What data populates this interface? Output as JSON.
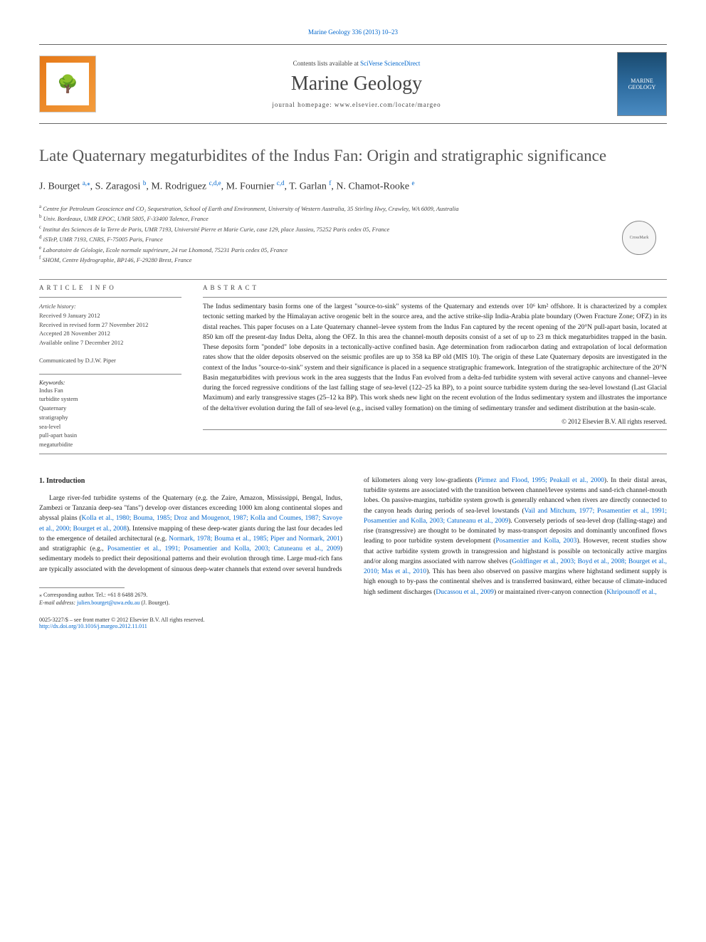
{
  "top_link": "Marine Geology 336 (2013) 10–23",
  "header": {
    "contents_prefix": "Contents lists available at ",
    "contents_link": "SciVerse ScienceDirect",
    "journal_name": "Marine Geology",
    "homepage_prefix": "journal homepage: ",
    "homepage_url": "www.elsevier.com/locate/margeo",
    "elsevier_label": "ELSEVIER",
    "cover_label": "MARINE GEOLOGY"
  },
  "title": "Late Quaternary megaturbidites of the Indus Fan: Origin and stratigraphic significance",
  "authors_html": {
    "a1_name": "J. Bourget ",
    "a1_sup": "a,",
    "a1_star": "⁎",
    "a2_name": ", S. Zaragosi ",
    "a2_sup": "b",
    "a3_name": ", M. Rodriguez ",
    "a3_sup": "c,d,e",
    "a4_name": ", M. Fournier ",
    "a4_sup": "c,d",
    "a5_name": ", T. Garlan ",
    "a5_sup": "f",
    "a6_name": ", N. Chamot-Rooke ",
    "a6_sup": "e"
  },
  "affiliations": {
    "a": "Centre for Petroleum Geoscience and CO₂ Sequestration, School of Earth and Environment, University of Western Australia, 35 Stirling Hwy, Crawley, WA 6009, Australia",
    "b": "Univ. Bordeaux, UMR EPOC, UMR 5805, F-33400 Talence, France",
    "c": "Institut des Sciences de la Terre de Paris, UMR 7193, Université Pierre et Marie Curie, case 129, place Jussieu, 75252 Paris cedex 05, France",
    "d": "iSTeP, UMR 7193, CNRS, F-75005 Paris, France",
    "e": "Laboratoire de Géologie, Ecole normale supérieure, 24 rue Lhomond, 75231 Paris cedex 05, France",
    "f": "SHOM, Centre Hydrographie, BP146, F-29280 Brest, France"
  },
  "article_info": {
    "heading": "article info",
    "history_label": "Article history:",
    "history": {
      "received": "Received 9 January 2012",
      "revised": "Received in revised form 27 November 2012",
      "accepted": "Accepted 28 November 2012",
      "online": "Available online 7 December 2012"
    },
    "communicated": "Communicated by D.J.W. Piper",
    "keywords_label": "Keywords:",
    "keywords": [
      "Indus Fan",
      "turbidite system",
      "Quaternary",
      "stratigraphy",
      "sea-level",
      "pull-apart basin",
      "megaturbidite"
    ]
  },
  "abstract": {
    "heading": "abstract",
    "text": "The Indus sedimentary basin forms one of the largest \"source-to-sink\" systems of the Quaternary and extends over 10⁶ km² offshore. It is characterized by a complex tectonic setting marked by the Himalayan active orogenic belt in the source area, and the active strike-slip India-Arabia plate boundary (Owen Fracture Zone; OFZ) in its distal reaches. This paper focuses on a Late Quaternary channel–levee system from the Indus Fan captured by the recent opening of the 20°N pull-apart basin, located at 850 km off the present-day Indus Delta, along the OFZ. In this area the channel-mouth deposits consist of a set of up to 23 m thick megaturbidites trapped in the basin. These deposits form \"ponded\" lobe deposits in a tectonically-active confined basin. Age determination from radiocarbon dating and extrapolation of local deformation rates show that the older deposits observed on the seismic profiles are up to 358 ka BP old (MIS 10). The origin of these Late Quaternary deposits are investigated in the context of the Indus \"source-to-sink\" system and their significance is placed in a sequence stratigraphic framework. Integration of the stratigraphic architecture of the 20°N Basin megaturbidites with previous work in the area suggests that the Indus Fan evolved from a delta-fed turbidite system with several active canyons and channel–levee during the forced regressive conditions of the last falling stage of sea-level (122–25 ka BP), to a point source turbidite system during the sea-level lowstand (Last Glacial Maximum) and early transgressive stages (25–12 ka BP). This work sheds new light on the recent evolution of the Indus sedimentary system and illustrates the importance of the delta/river evolution during the fall of sea-level (e.g., incised valley formation) on the timing of sedimentary transfer and sediment distribution at the basin-scale.",
    "copyright": "© 2012 Elsevier B.V. All rights reserved."
  },
  "body": {
    "section1_heading": "1. Introduction",
    "col1_p1a": "Large river-fed turbidite systems of the Quaternary (e.g. the Zaire, Amazon, Mississippi, Bengal, Indus, Zambezi or Tanzania deep-sea \"fans\") develop over distances exceeding 1000 km along continental slopes and abyssal plains (",
    "col1_ref1": "Kolla et al., 1980; Bouma, 1985; Droz and Mougenot, 1987; Kolla and Coumes, 1987; Savoye et al., 2000; Bourget et al., 2008",
    "col1_p1b": "). Intensive mapping of these deep-water giants during the last four decades led to the emergence of detailed architectural (e.g. ",
    "col1_ref2": "Normark, 1978; Bouma et al., 1985; Piper and Normark, 2001",
    "col1_p1c": ") and stratigraphic (e.g., ",
    "col1_ref3": "Posamentier et al., 1991; Posamentier and Kolla, 2003; Catuneanu et al., 2009",
    "col1_p1d": ") sedimentary models to predict their depositional patterns and their evolution through time. Large mud-rich fans are typically associated with the development of sinuous deep-water channels that extend over several hundreds",
    "col2_p1a": "of kilometers along very low-gradients (",
    "col2_ref1": "Pirmez and Flood, 1995; Peakall et al., 2000",
    "col2_p1b": "). In their distal areas, turbidite systems are associated with the transition between channel/levee systems and sand-rich channel-mouth lobes. On passive-margins, turbidite system growth is generally enhanced when rivers are directly connected to the canyon heads during periods of sea-level lowstands (",
    "col2_ref2": "Vail and Mitchum, 1977; Posamentier et al., 1991; Posamentier and Kolla, 2003; Catuneanu et al., 2009",
    "col2_p1c": "). Conversely periods of sea-level drop (falling-stage) and rise (transgressive) are thought to be dominated by mass-transport deposits and dominantly unconfined flows leading to poor turbidite system development (",
    "col2_ref3": "Posamentier and Kolla, 2003",
    "col2_p1d": "). However, recent studies show that active turbidite system growth in transgression and highstand is possible on tectonically active margins and/or along margins associated with narrow shelves (",
    "col2_ref4": "Goldfinger et al., 2003; Boyd et al., 2008; Bourget et al., 2010; Mas et al., 2010",
    "col2_p1e": "). This has been also observed on passive margins where highstand sediment supply is high enough to by-pass the continental shelves and is transferred basinward, either because of climate-induced high sediment discharges (",
    "col2_ref5": "Ducassou et al., 2009",
    "col2_p1f": ") or maintained river-canyon connection (",
    "col2_ref6": "Khripounoff et al.,"
  },
  "footnote": {
    "corr_label": "⁎ Corresponding author. Tel.: +61 8 6488 2679.",
    "email_label": "E-mail address: ",
    "email": "julien.bourget@uwa.edu.au",
    "email_suffix": " (J. Bourget)."
  },
  "footer": {
    "issn": "0025-3227/$ – see front matter © 2012 Elsevier B.V. All rights reserved.",
    "doi": "http://dx.doi.org/10.1016/j.margeo.2012.11.011"
  },
  "crossmark": "CrossMark"
}
